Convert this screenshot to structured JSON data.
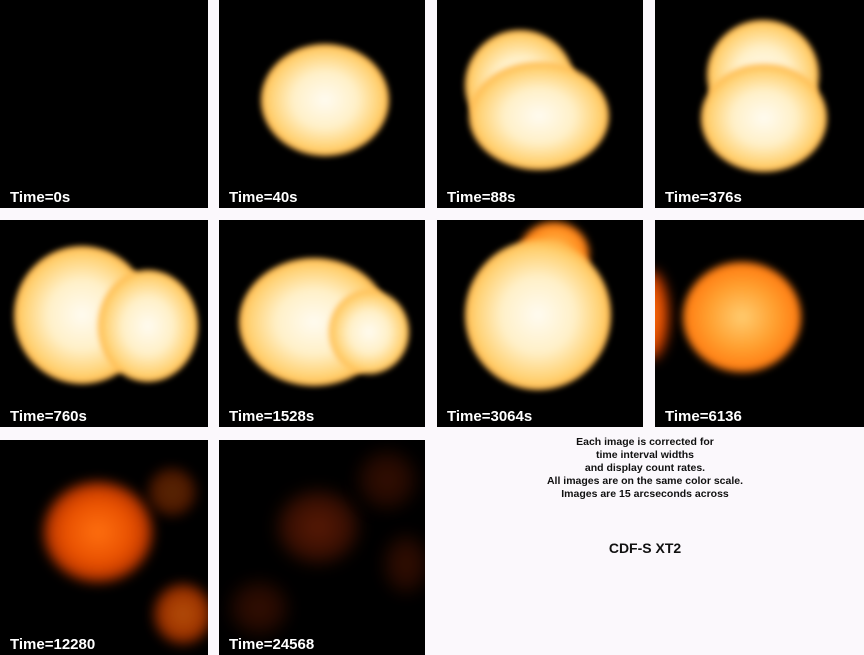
{
  "panels": [
    {
      "label": "Time=0s"
    },
    {
      "label": "Time=40s"
    },
    {
      "label": "Time=88s"
    },
    {
      "label": "Time=376s"
    },
    {
      "label": "Time=760s"
    },
    {
      "label": "Time=1528s"
    },
    {
      "label": "Time=3064s"
    },
    {
      "label": "Time=6136"
    },
    {
      "label": "Time=12280"
    },
    {
      "label": "Time=24568"
    }
  ],
  "notes": [
    "Each image is corrected for",
    "time interval widths",
    "and display count rates.",
    "All images are on the same color scale.",
    "Images are 15 arcseconds across"
  ],
  "title": "CDF-S XT2",
  "colors": {
    "background": "#fbf8fc",
    "panel": "#000000",
    "label_text": "#ffffff",
    "hot_core": "#fffbf0",
    "orange": "#ff9a20",
    "dark_red": "#a02800"
  }
}
